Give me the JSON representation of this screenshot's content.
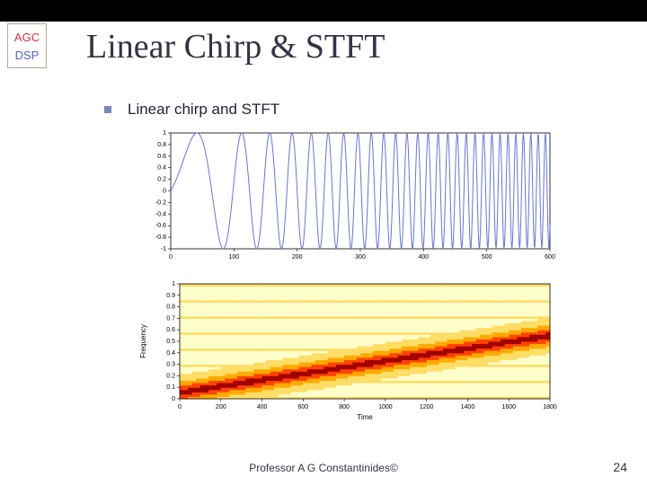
{
  "logo": {
    "top": "AGC",
    "bottom": "DSP"
  },
  "title": "Linear Chirp & STFT",
  "bullet": "Linear chirp and STFT",
  "footer": {
    "author": "Professor A G Constantinides©",
    "page": "24"
  },
  "chirp_chart": {
    "type": "line",
    "line_color": "#6677cc",
    "line_width": 1,
    "background_color": "#ffffff",
    "axis_color": "#000000",
    "ylim": [
      -1,
      1
    ],
    "ytick_labels": [
      "-1",
      "-0.8",
      "-0.6",
      "-0.4",
      "-0.2",
      "0",
      "0.2",
      "0.4",
      "0.6",
      "0.8",
      "1"
    ],
    "xlim": [
      0,
      600
    ],
    "xtick_labels": [
      "0",
      "100",
      "200",
      "300",
      "400",
      "500",
      "600"
    ],
    "tick_fontsize": 7,
    "freq_start": 0.003,
    "freq_end": 0.09,
    "n_samples": 600
  },
  "spectrogram_chart": {
    "type": "heatmap",
    "background_color": "#ffffff",
    "axis_color": "#000000",
    "xlabel": "Time",
    "ylabel": "Frequency",
    "label_fontsize": 8,
    "ylim": [
      0,
      1
    ],
    "ytick_labels": [
      "0",
      "0.1",
      "0.2",
      "0.3",
      "0.4",
      "0.5",
      "0.6",
      "0.7",
      "0.8",
      "0.9",
      "1"
    ],
    "xlim": [
      0,
      1800
    ],
    "xtick_labels": [
      "0",
      "200",
      "400",
      "600",
      "800",
      "1000",
      "1200",
      "1400",
      "1600",
      "1800"
    ],
    "tick_fontsize": 7,
    "colormap": [
      "#a00000",
      "#ff4400",
      "#ffaa00",
      "#ffdd66",
      "#ffffcc"
    ],
    "ridge_slope": 0.5,
    "ridge_width": 0.08
  }
}
